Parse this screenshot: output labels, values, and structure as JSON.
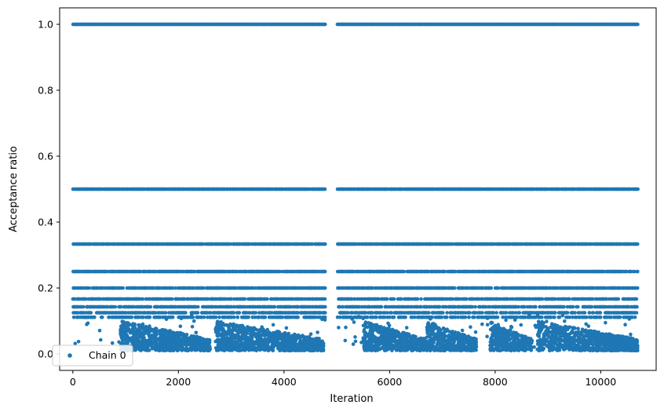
{
  "chart_data": {
    "type": "scatter",
    "title": "",
    "xlabel": "Iteration",
    "ylabel": "Acceptance ratio",
    "xlim": [
      -250,
      11050
    ],
    "ylim": [
      -0.05,
      1.05
    ],
    "xticks": [
      0,
      2000,
      4000,
      6000,
      8000,
      10000
    ],
    "xtick_labels": [
      "0",
      "2000",
      "4000",
      "6000",
      "8000",
      "10000"
    ],
    "yticks": [
      0.0,
      0.2,
      0.4,
      0.6,
      0.8,
      1.0
    ],
    "ytick_labels": [
      "0.0",
      "0.2",
      "0.4",
      "0.6",
      "0.8",
      "1.0"
    ],
    "grid": false,
    "legend_position": "lower-left",
    "series": [
      {
        "name": "Chain 0",
        "color": "#1f77b4",
        "marker": "point",
        "iterations": 10700,
        "discrete_levels": [
          1.0,
          0.5,
          0.3333,
          0.25,
          0.2,
          0.1667,
          0.1429,
          0.125,
          0.1111
        ],
        "low_value_clusters": [
          {
            "x_start": 900,
            "x_end": 2600,
            "y_range": [
              0.01,
              0.1
            ]
          },
          {
            "x_start": 2700,
            "x_end": 4750,
            "y_range": [
              0.01,
              0.1
            ]
          },
          {
            "x_start": 5500,
            "x_end": 6700,
            "y_range": [
              0.01,
              0.1
            ]
          },
          {
            "x_start": 6700,
            "x_end": 7650,
            "y_range": [
              0.01,
              0.1
            ]
          },
          {
            "x_start": 7900,
            "x_end": 8700,
            "y_range": [
              0.01,
              0.1
            ]
          },
          {
            "x_start": 8800,
            "x_end": 10700,
            "y_range": [
              0.01,
              0.1
            ]
          }
        ],
        "gaps": [
          [
            4780,
            5000
          ]
        ]
      }
    ]
  }
}
